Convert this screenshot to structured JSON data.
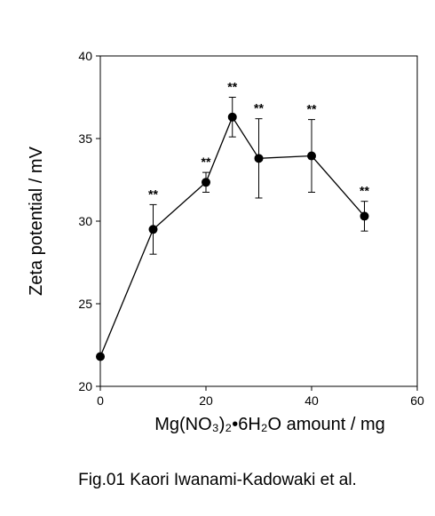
{
  "chart_data": {
    "type": "scatter",
    "xlabel": "Mg(NO₃)₂•6H₂O amount / mg",
    "ylabel": "Zeta potential / mV",
    "xlim": [
      0,
      60
    ],
    "ylim": [
      20,
      40
    ],
    "xticks": [
      0,
      20,
      40,
      60
    ],
    "yticks": [
      20,
      25,
      30,
      35,
      40
    ],
    "grid": false,
    "series": [
      {
        "marker": "filled-circle",
        "line": "solid",
        "color": "#000000",
        "points": [
          {
            "x": 0,
            "y": 21.8,
            "err": null,
            "label": ""
          },
          {
            "x": 10,
            "y": 29.5,
            "err": 1.5,
            "label": "**"
          },
          {
            "x": 20,
            "y": 32.35,
            "err": 0.6,
            "label": "**"
          },
          {
            "x": 25,
            "y": 36.3,
            "err": 1.2,
            "label": "**"
          },
          {
            "x": 30,
            "y": 33.8,
            "err": 2.4,
            "label": "**"
          },
          {
            "x": 40,
            "y": 33.95,
            "err": 2.2,
            "label": "**"
          },
          {
            "x": 50,
            "y": 30.3,
            "err": 0.9,
            "label": "**"
          }
        ]
      }
    ]
  },
  "caption": "Fig.01 Kaori Iwanami-Kadowaki et al."
}
